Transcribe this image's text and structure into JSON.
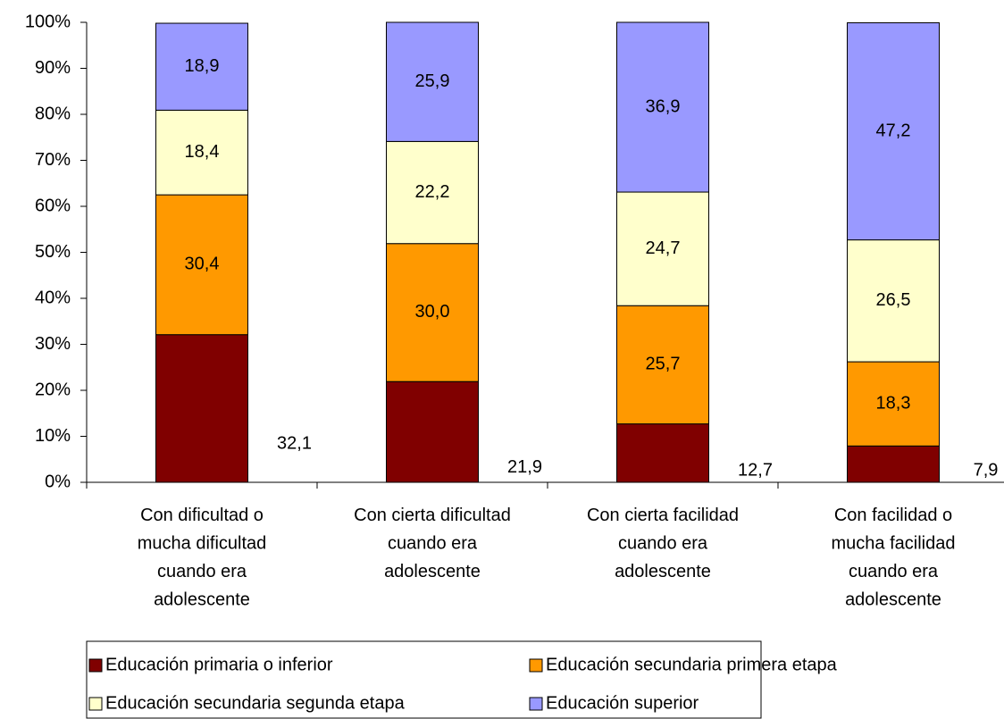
{
  "chart_data": {
    "type": "stacked_bar",
    "categories": [
      "Con dificultad o\nmucha dificultad\ncuando era\nadolescente",
      "Con cierta dificultad\ncuando era\nadolescente",
      "Con cierta facilidad\ncuando era\nadolescente",
      "Con facilidad o\nmucha facilidad\ncuando era\nadolescente"
    ],
    "series": [
      {
        "name": "Educación primaria o inferior",
        "color": "#800000",
        "values": [
          32.1,
          21.9,
          12.7,
          7.9
        ],
        "value_labels": [
          "32,1",
          "21,9",
          "12,7",
          "7,9"
        ]
      },
      {
        "name": "Educación secundaria primera etapa",
        "color": "#ff9900",
        "values": [
          30.4,
          30.0,
          25.7,
          18.3
        ],
        "value_labels": [
          "30,4",
          "30,0",
          "25,7",
          "18,3"
        ]
      },
      {
        "name": "Educación secundaria segunda etapa",
        "color": "#ffffcc",
        "values": [
          18.4,
          22.2,
          24.7,
          26.5
        ],
        "value_labels": [
          "18,4",
          "22,2",
          "24,7",
          "26,5"
        ]
      },
      {
        "name": "Educación superior",
        "color": "#9999ff",
        "values": [
          18.9,
          25.9,
          36.9,
          47.2
        ],
        "value_labels": [
          "18,9",
          "25,9",
          "36,9",
          "47,2"
        ]
      }
    ],
    "ylim": [
      0,
      100
    ],
    "yticks": [
      {
        "value": 0,
        "label": "0%"
      },
      {
        "value": 10,
        "label": "10%"
      },
      {
        "value": 20,
        "label": "20%"
      },
      {
        "value": 30,
        "label": "30%"
      },
      {
        "value": 40,
        "label": "40%"
      },
      {
        "value": 50,
        "label": "50%"
      },
      {
        "value": 60,
        "label": "60%"
      },
      {
        "value": 70,
        "label": "70%"
      },
      {
        "value": 80,
        "label": "80%"
      },
      {
        "value": 90,
        "label": "90%"
      },
      {
        "value": 100,
        "label": "100%"
      }
    ],
    "legend": "bottom"
  }
}
